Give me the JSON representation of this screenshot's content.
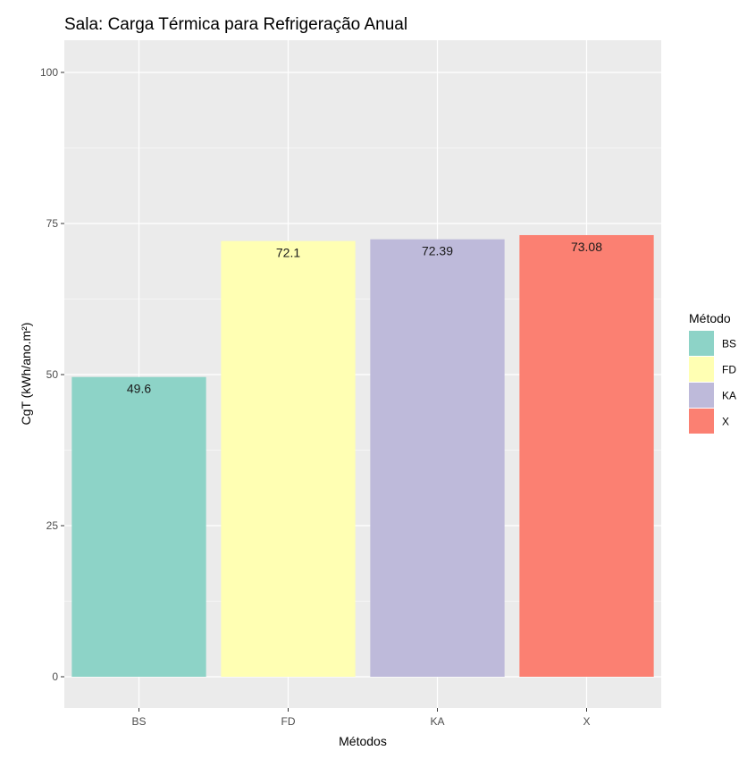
{
  "chart_data": {
    "type": "bar",
    "title": "Sala: Carga Térmica para Refrigeração Anual",
    "xlabel": "Métodos",
    "ylabel": "CgT (kWh/ano.m²)",
    "categories": [
      "BS",
      "FD",
      "KA",
      "X"
    ],
    "values": [
      49.6,
      72.1,
      72.39,
      73.08
    ],
    "data_labels": [
      "49.6",
      "72.1",
      "72.39",
      "73.08"
    ],
    "ylim": [
      0,
      100
    ],
    "y_ticks": [
      0,
      25,
      50,
      75,
      100
    ],
    "y_tick_labels": [
      "0",
      "25",
      "50",
      "75",
      "100"
    ],
    "grid": true,
    "colors": [
      "#8dd3c7",
      "#ffffb3",
      "#bebada",
      "#fb8072"
    ],
    "panel_background": "#ebebeb",
    "legend": {
      "title": "Método",
      "position": "right",
      "entries": [
        "BS",
        "FD",
        "KA",
        "X"
      ]
    }
  }
}
